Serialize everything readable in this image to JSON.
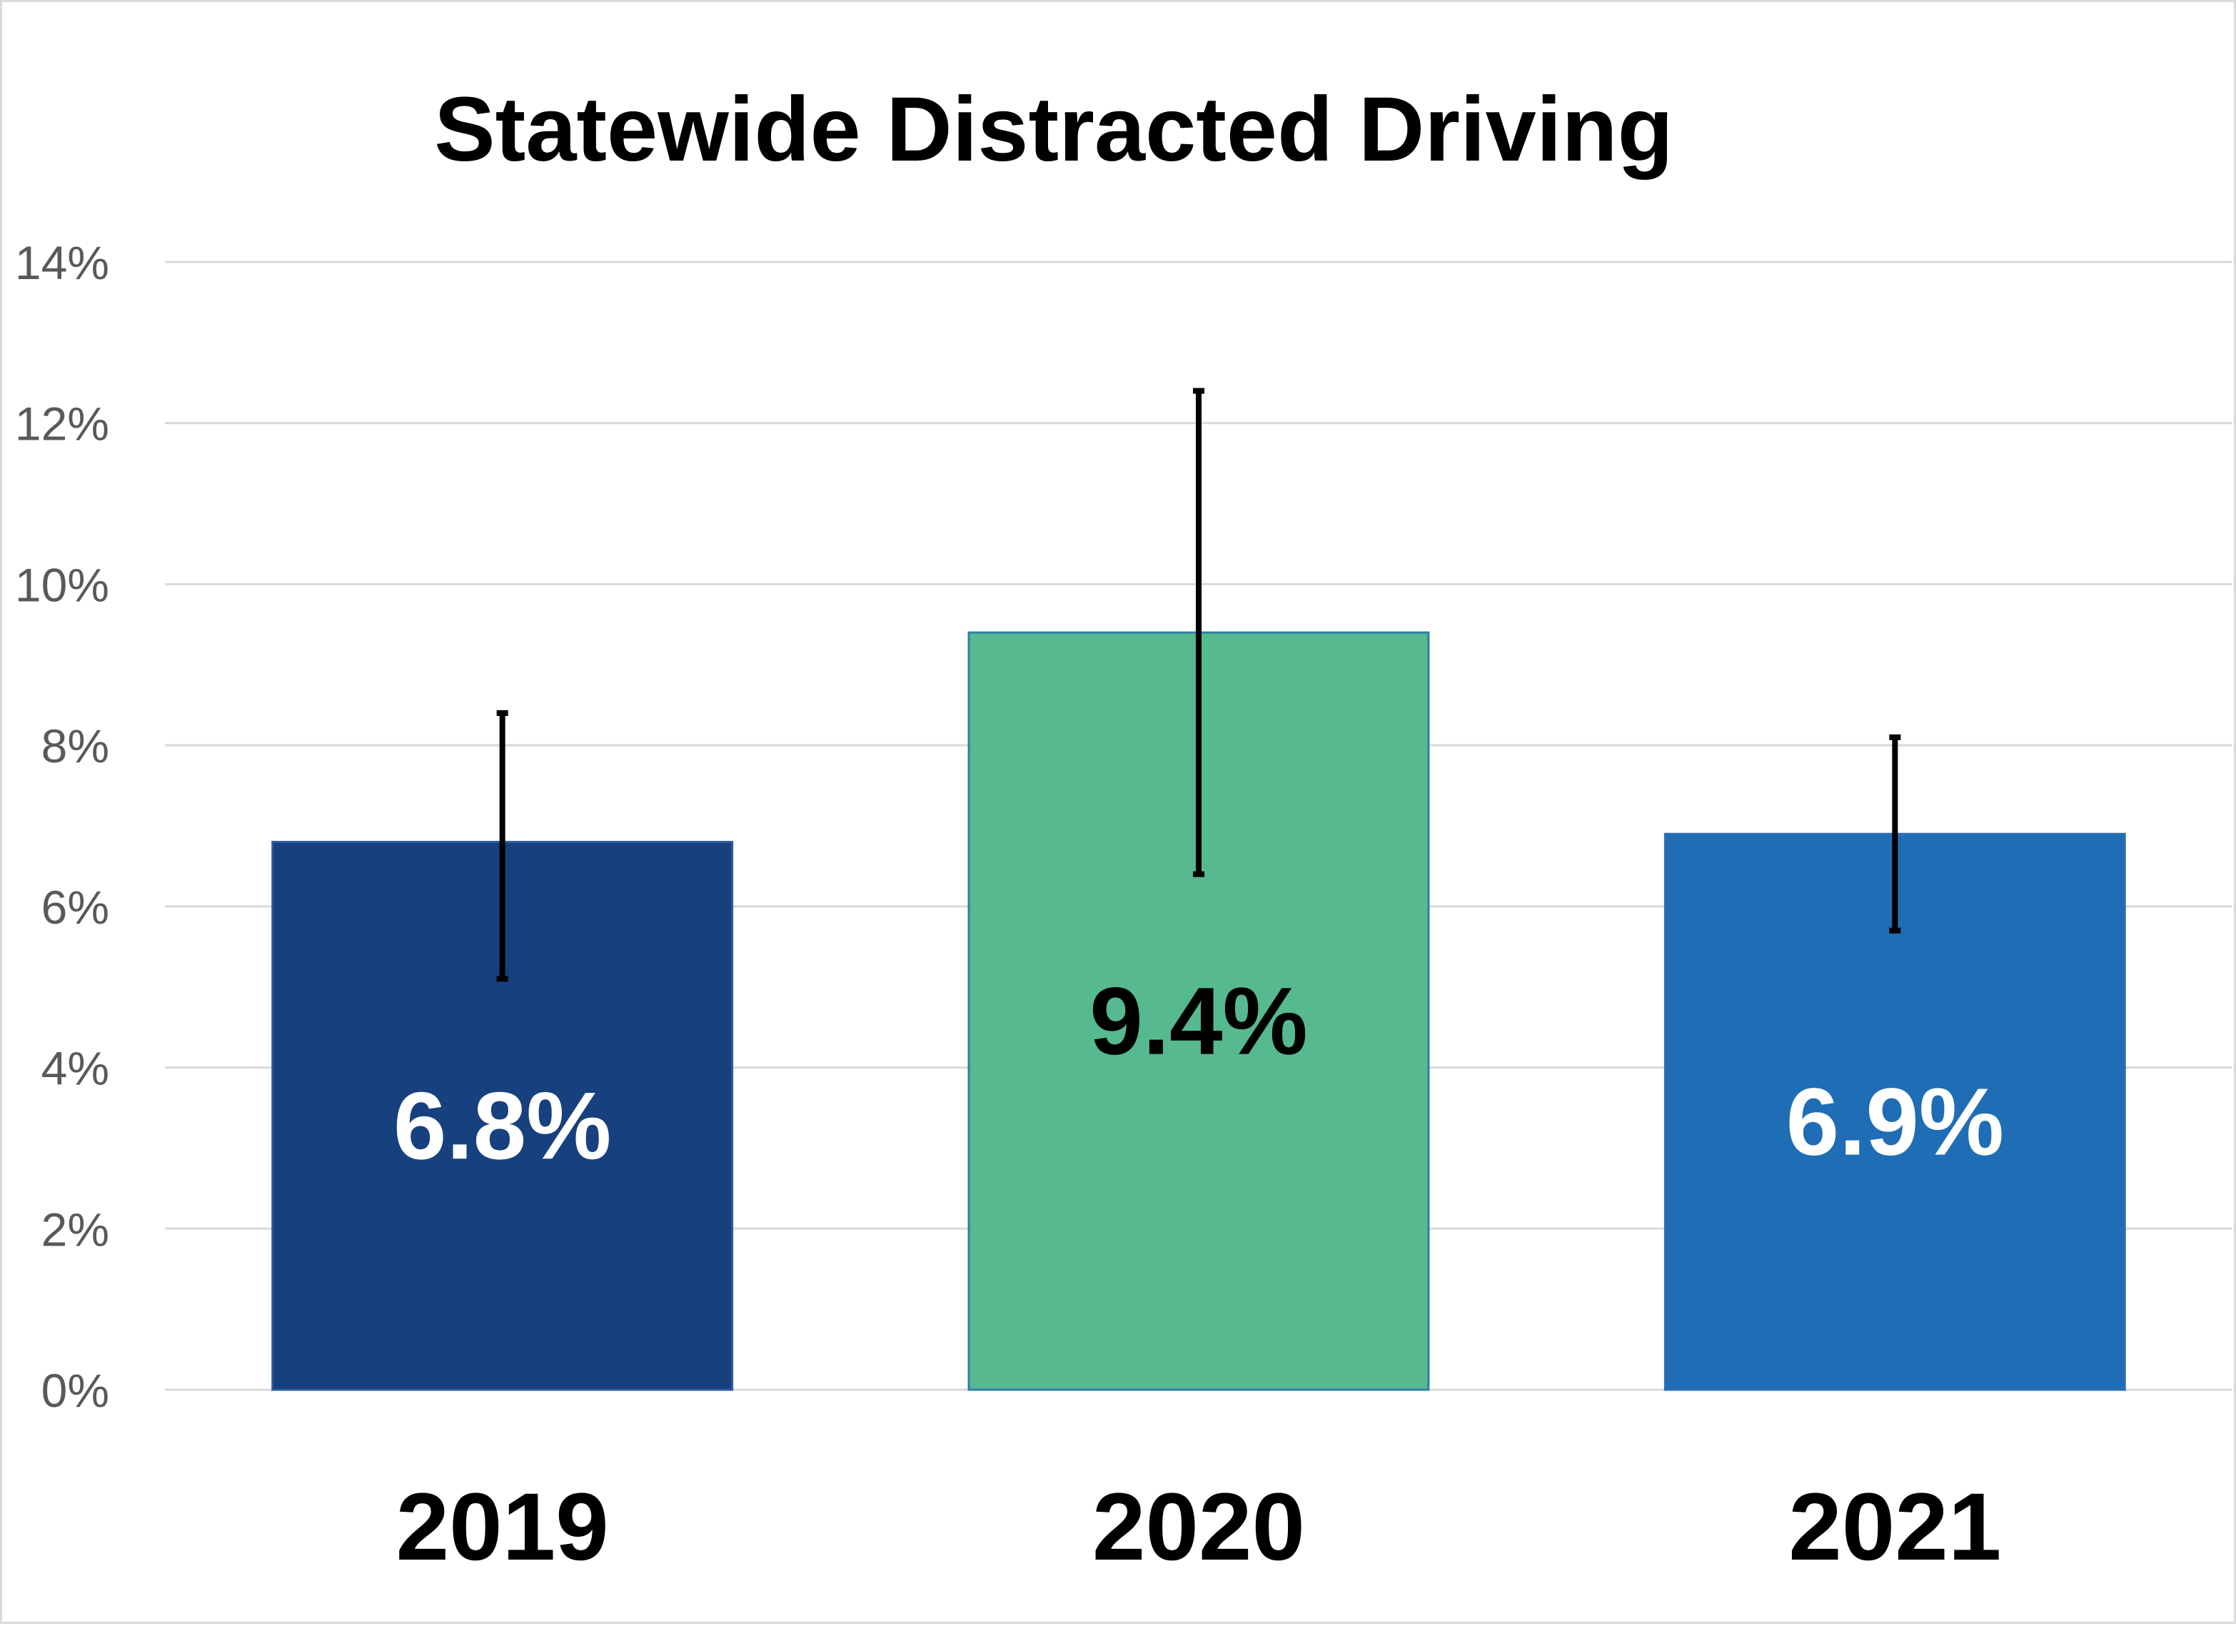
{
  "chart_data": {
    "type": "bar",
    "title": "Statewide Distracted Driving",
    "xlabel": "",
    "ylabel": "",
    "categories": [
      "2019",
      "2020",
      "2021"
    ],
    "values": [
      6.8,
      9.4,
      6.9
    ],
    "value_labels": [
      "6.8%",
      "9.4%",
      "6.9%"
    ],
    "error_bars": [
      {
        "low": 5.1,
        "high": 8.4
      },
      {
        "low": 6.4,
        "high": 12.4
      },
      {
        "low": 5.7,
        "high": 8.1
      }
    ],
    "bar_colors": [
      "#17407e",
      "#56b990",
      "#1f6db5"
    ],
    "bar_border_colors": [
      "#2e5a9c",
      "#2e7fa8",
      "#2e6fb0"
    ],
    "data_label_colors": [
      "#ffffff",
      "#000000",
      "#ffffff"
    ],
    "ylim": [
      0,
      14
    ],
    "yticks": [
      0,
      2,
      4,
      6,
      8,
      10,
      12,
      14
    ],
    "ytick_labels": [
      "0%",
      "2%",
      "4%",
      "6%",
      "8%",
      "10%",
      "12%",
      "14%"
    ],
    "grid": true,
    "legend": "none"
  }
}
